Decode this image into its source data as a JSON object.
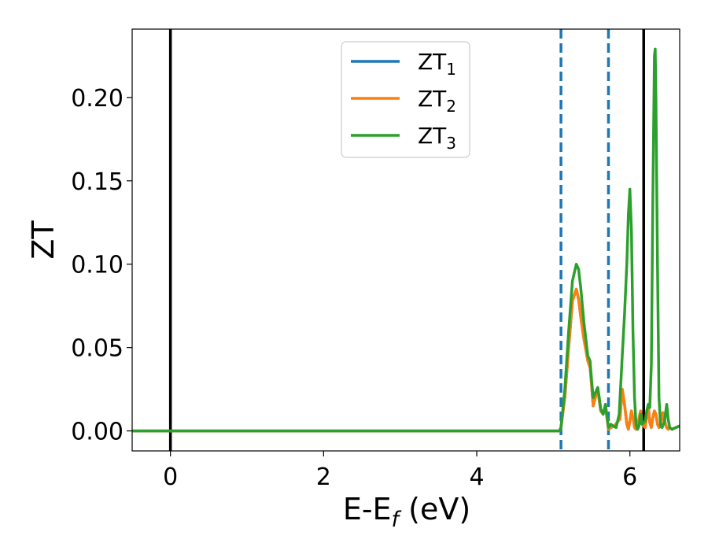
{
  "chart_data": {
    "type": "line",
    "title": "",
    "xlabel": "E-E",
    "xlabel_sub": "f",
    "xlabel_suffix": " (eV)",
    "ylabel": "ZT",
    "xlim": [
      -0.5,
      6.65
    ],
    "ylim": [
      -0.012,
      0.241
    ],
    "xticks": [
      0,
      2,
      4,
      6
    ],
    "xtick_labels": [
      "0",
      "2",
      "4",
      "6"
    ],
    "yticks": [
      0.0,
      0.05,
      0.1,
      0.15,
      0.2
    ],
    "ytick_labels": [
      "0.00",
      "0.05",
      "0.10",
      "0.15",
      "0.20"
    ],
    "grid": false,
    "legend_position": "top-center",
    "vlines_solid": [
      0.0,
      6.18
    ],
    "vlines_dashed": [
      5.1,
      5.72
    ],
    "series": [
      {
        "name": "ZT",
        "sub": "1",
        "color": "#1f77b4",
        "x": [
          -0.5,
          5.08,
          5.1,
          5.15,
          5.2,
          5.25,
          5.3,
          5.33,
          5.36,
          5.4,
          5.45,
          5.48,
          5.5,
          5.52,
          5.55,
          5.58,
          5.6,
          5.62,
          5.65,
          5.68,
          5.72,
          5.75,
          5.8,
          5.83,
          5.87,
          5.9,
          5.93,
          5.96,
          5.98,
          6.0,
          6.02,
          6.04,
          6.06,
          6.08,
          6.1,
          6.12,
          6.14,
          6.16,
          6.2,
          6.22,
          6.24,
          6.26,
          6.28,
          6.3,
          6.32,
          6.34,
          6.36,
          6.38,
          6.4,
          6.43,
          6.46,
          6.48,
          6.5,
          6.52,
          6.55,
          6.6,
          6.65
        ],
        "y": [
          0.0,
          0.0,
          0.002,
          0.02,
          0.05,
          0.078,
          0.085,
          0.079,
          0.068,
          0.055,
          0.042,
          0.038,
          0.027,
          0.015,
          0.02,
          0.026,
          0.018,
          0.012,
          0.01,
          0.015,
          0.001,
          0.002,
          0.003,
          0.005,
          0.007,
          0.025,
          0.016,
          0.004,
          0.001,
          0.006,
          0.012,
          0.008,
          0.002,
          0.001,
          0.002,
          0.008,
          0.012,
          0.004,
          0.002,
          0.009,
          0.015,
          0.005,
          0.002,
          0.008,
          0.012,
          0.01,
          0.004,
          0.002,
          0.003,
          0.011,
          0.005,
          0.002,
          0.001,
          0.002,
          0.001,
          0.002,
          0.003
        ]
      },
      {
        "name": "ZT",
        "sub": "2",
        "color": "#ff7f0e",
        "x": [
          -0.5,
          5.08,
          5.1,
          5.15,
          5.2,
          5.25,
          5.3,
          5.33,
          5.36,
          5.4,
          5.45,
          5.48,
          5.5,
          5.52,
          5.55,
          5.58,
          5.6,
          5.62,
          5.65,
          5.68,
          5.72,
          5.75,
          5.8,
          5.83,
          5.87,
          5.9,
          5.93,
          5.96,
          5.98,
          6.0,
          6.02,
          6.04,
          6.06,
          6.08,
          6.1,
          6.12,
          6.14,
          6.16,
          6.2,
          6.22,
          6.24,
          6.26,
          6.28,
          6.3,
          6.32,
          6.34,
          6.36,
          6.38,
          6.4,
          6.43,
          6.46,
          6.48,
          6.5,
          6.52,
          6.55,
          6.6,
          6.65
        ],
        "y": [
          0.0,
          0.0,
          0.002,
          0.02,
          0.05,
          0.078,
          0.085,
          0.079,
          0.068,
          0.055,
          0.042,
          0.038,
          0.027,
          0.015,
          0.02,
          0.026,
          0.018,
          0.012,
          0.01,
          0.015,
          0.001,
          0.002,
          0.003,
          0.005,
          0.007,
          0.025,
          0.016,
          0.004,
          0.001,
          0.006,
          0.012,
          0.008,
          0.002,
          0.001,
          0.002,
          0.008,
          0.012,
          0.004,
          0.002,
          0.009,
          0.015,
          0.005,
          0.002,
          0.008,
          0.012,
          0.01,
          0.004,
          0.002,
          0.003,
          0.011,
          0.005,
          0.002,
          0.001,
          0.002,
          0.001,
          0.002,
          0.003
        ]
      },
      {
        "name": "ZT",
        "sub": "3",
        "color": "#2ca02c",
        "x": [
          -0.5,
          5.08,
          5.1,
          5.15,
          5.2,
          5.25,
          5.3,
          5.33,
          5.36,
          5.4,
          5.45,
          5.48,
          5.5,
          5.52,
          5.55,
          5.58,
          5.6,
          5.62,
          5.65,
          5.68,
          5.72,
          5.75,
          5.78,
          5.82,
          5.86,
          5.9,
          5.93,
          5.96,
          5.98,
          6.0,
          6.02,
          6.04,
          6.06,
          6.08,
          6.1,
          6.12,
          6.14,
          6.16,
          6.2,
          6.22,
          6.24,
          6.26,
          6.28,
          6.3,
          6.32,
          6.33,
          6.34,
          6.36,
          6.38,
          6.4,
          6.42,
          6.45,
          6.48,
          6.5,
          6.52,
          6.55,
          6.6,
          6.65
        ],
        "y": [
          0.0,
          0.0,
          0.002,
          0.025,
          0.06,
          0.09,
          0.1,
          0.097,
          0.085,
          0.065,
          0.045,
          0.042,
          0.03,
          0.02,
          0.023,
          0.026,
          0.02,
          0.013,
          0.01,
          0.016,
          0.002,
          0.004,
          0.003,
          0.002,
          0.01,
          0.045,
          0.07,
          0.1,
          0.13,
          0.145,
          0.12,
          0.06,
          0.02,
          0.004,
          0.001,
          0.003,
          0.01,
          0.004,
          0.006,
          0.012,
          0.016,
          0.014,
          0.04,
          0.14,
          0.225,
          0.229,
          0.2,
          0.1,
          0.02,
          0.003,
          0.002,
          0.005,
          0.016,
          0.007,
          0.002,
          0.001,
          0.002,
          0.003
        ]
      }
    ]
  }
}
